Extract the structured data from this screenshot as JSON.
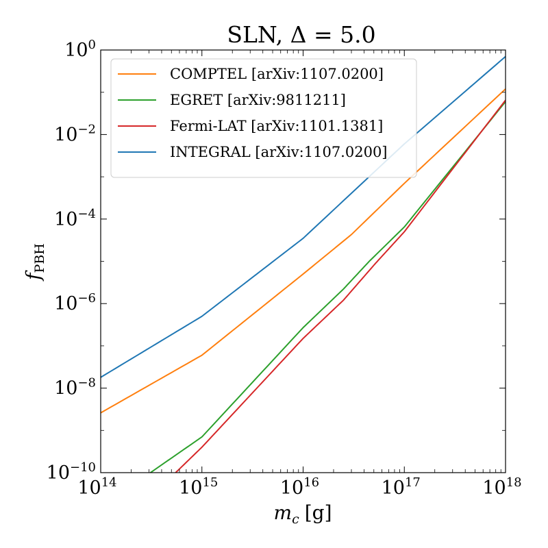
{
  "chart_data": {
    "type": "line",
    "title": "SLN, Δ = 5.0",
    "xlabel": "m",
    "xlabel_sub": "c",
    "xlabel_unit": "[g]",
    "ylabel": "f",
    "ylabel_sub": "PBH",
    "x_scale": "log",
    "y_scale": "log",
    "xlim": [
      100000000000000.0,
      1e+18
    ],
    "ylim": [
      1e-10,
      1
    ],
    "x_ticks": [
      {
        "base": "10",
        "exp": "14",
        "value": 100000000000000.0
      },
      {
        "base": "10",
        "exp": "15",
        "value": 1000000000000000.0
      },
      {
        "base": "10",
        "exp": "16",
        "value": 1e+16
      },
      {
        "base": "10",
        "exp": "17",
        "value": 1e+17
      },
      {
        "base": "10",
        "exp": "18",
        "value": 1e+18
      }
    ],
    "y_ticks": [
      {
        "base": "10",
        "exp": "0",
        "value": 1
      },
      {
        "base": "10",
        "exp": "−2",
        "value": 0.01
      },
      {
        "base": "10",
        "exp": "−4",
        "value": 0.0001
      },
      {
        "base": "10",
        "exp": "−6",
        "value": 1e-06
      },
      {
        "base": "10",
        "exp": "−8",
        "value": 1e-08
      },
      {
        "base": "10",
        "exp": "−10",
        "value": 1e-10
      }
    ],
    "grid": false,
    "legend_position": "top-left",
    "series": [
      {
        "name": "COMPTEL  [arXiv:1107.0200]",
        "color": "#ff7f0e",
        "x": [
          100000000000000.0,
          1000000000000000.0,
          1e+16,
          3e+16,
          1e+17,
          1e+18
        ],
        "y": [
          2.6e-09,
          6e-08,
          5e-06,
          4.3e-05,
          0.0007,
          0.12
        ]
      },
      {
        "name": "EGRET  [arXiv:9811211]",
        "color": "#2ca02c",
        "x": [
          310000000000000.0,
          1000000000000000.0,
          1e+16,
          2.5e+16,
          4.5e+16,
          1e+17,
          1e+18
        ],
        "y": [
          1e-10,
          7e-10,
          2.7e-07,
          2.2e-06,
          1e-05,
          6.5e-05,
          0.06
        ]
      },
      {
        "name": "Fermi-LAT  [arXiv:1101.1381]",
        "color": "#d62728",
        "x": [
          550000000000000.0,
          1000000000000000.0,
          1e+16,
          2.5e+16,
          5.2e+16,
          1e+17,
          1e+18
        ],
        "y": [
          1e-10,
          4e-10,
          1.5e-07,
          1.2e-06,
          9e-06,
          5e-05,
          0.065
        ]
      },
      {
        "name": "INTEGRAL  [arXiv:1107.0200]",
        "color": "#1f77b4",
        "x": [
          100000000000000.0,
          1000000000000000.0,
          1e+16,
          1e+17,
          1e+18
        ],
        "y": [
          1.8e-08,
          5e-07,
          3.5e-05,
          0.006,
          0.7
        ]
      }
    ]
  }
}
